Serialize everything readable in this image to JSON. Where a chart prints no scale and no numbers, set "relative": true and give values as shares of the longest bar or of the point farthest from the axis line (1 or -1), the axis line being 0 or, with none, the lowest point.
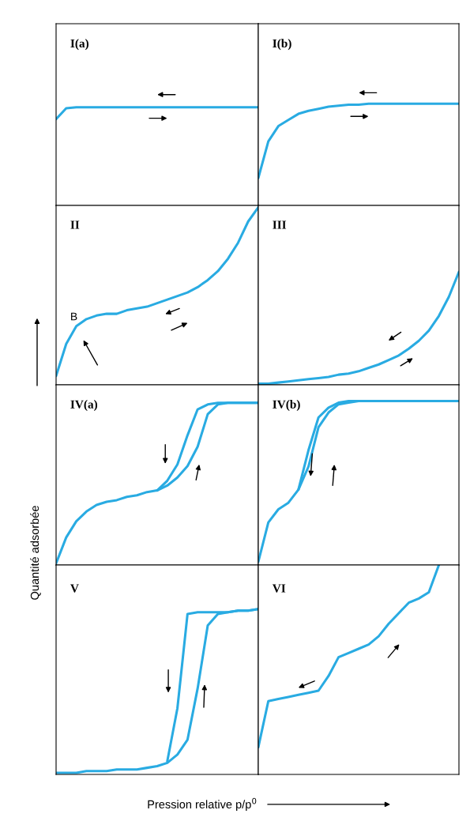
{
  "chart_data": [
    {
      "type": "line",
      "title": "I(a)",
      "relative": true,
      "categories": [
        null,
        null,
        null,
        null,
        null,
        null,
        null,
        null,
        null,
        null,
        null,
        null,
        null,
        null,
        null,
        null,
        null,
        null,
        null,
        null,
        null
      ],
      "series": [
        {
          "color": "#29abe2",
          "values": [
            0.88,
            0.99,
            1,
            1,
            1,
            1,
            1,
            1,
            1,
            1,
            1,
            1,
            1,
            1,
            1,
            1,
            1,
            1,
            1,
            1,
            1
          ]
        }
      ]
    },
    {
      "type": "line",
      "title": "I(b)",
      "relative": true,
      "categories": [
        null,
        null,
        null,
        null,
        null,
        null,
        null,
        null,
        null,
        null,
        null,
        null,
        null,
        null,
        null,
        null,
        null,
        null,
        null,
        null,
        null
      ],
      "series": [
        {
          "color": "#29abe2",
          "values": [
            0.27,
            0.63,
            0.78,
            0.84,
            0.9,
            0.93,
            0.95,
            0.97,
            0.98,
            0.99,
            0.99,
            1,
            1,
            1,
            1,
            1,
            1,
            1,
            1,
            1,
            1
          ]
        }
      ]
    },
    {
      "type": "line",
      "title": "II",
      "relative": true,
      "annotations": [
        "B"
      ],
      "categories": [
        null,
        null,
        null,
        null,
        null,
        null,
        null,
        null,
        null,
        null,
        null,
        null,
        null,
        null,
        null,
        null,
        null,
        null,
        null,
        null,
        null
      ],
      "series": [
        {
          "color": "#29abe2",
          "values": [
            0.05,
            0.23,
            0.33,
            0.37,
            0.39,
            0.4,
            0.4,
            0.42,
            0.43,
            0.44,
            0.46,
            0.48,
            0.5,
            0.52,
            0.55,
            0.59,
            0.64,
            0.71,
            0.8,
            0.92,
            1
          ]
        }
      ]
    },
    {
      "type": "line",
      "title": "III",
      "relative": true,
      "categories": [
        null,
        null,
        null,
        null,
        null,
        null,
        null,
        null,
        null,
        null,
        null,
        null,
        null,
        null,
        null,
        null,
        null,
        null,
        null,
        null,
        null
      ],
      "series": [
        {
          "color": "#29abe2",
          "values": [
            0.01,
            0.01,
            0.02,
            0.03,
            0.04,
            0.05,
            0.06,
            0.07,
            0.09,
            0.1,
            0.12,
            0.15,
            0.18,
            0.22,
            0.26,
            0.32,
            0.39,
            0.48,
            0.61,
            0.78,
            1
          ]
        }
      ]
    },
    {
      "type": "line",
      "title": "IV(a)",
      "relative": true,
      "categories": [
        null,
        null,
        null,
        null,
        null,
        null,
        null,
        null,
        null,
        null,
        null,
        null,
        null,
        null,
        null,
        null,
        null,
        null,
        null,
        null,
        null
      ],
      "series": [
        {
          "color": "#29abe2",
          "values": [
            0.01,
            0.17,
            0.27,
            0.33,
            0.37,
            0.39,
            0.4,
            0.42,
            0.43,
            0.45,
            0.46,
            0.49,
            0.54,
            0.61,
            0.73,
            0.93,
            0.99,
            1,
            1,
            1,
            1
          ]
        },
        {
          "color": "#29abe2",
          "values": [
            null,
            null,
            null,
            null,
            null,
            null,
            null,
            null,
            null,
            null,
            0.46,
            0.52,
            0.62,
            0.8,
            0.96,
            0.99,
            1,
            1,
            1,
            1,
            1
          ]
        }
      ]
    },
    {
      "type": "line",
      "title": "IV(b)",
      "relative": true,
      "categories": [
        null,
        null,
        null,
        null,
        null,
        null,
        null,
        null,
        null,
        null,
        null,
        null,
        null,
        null,
        null,
        null,
        null,
        null,
        null,
        null,
        null
      ],
      "series": [
        {
          "color": "#29abe2",
          "values": [
            0.02,
            0.26,
            0.34,
            0.38,
            0.46,
            0.6,
            0.84,
            0.93,
            0.98,
            0.99,
            1,
            1,
            1,
            1,
            1,
            1,
            1,
            1,
            1,
            1,
            1
          ]
        },
        {
          "color": "#29abe2",
          "values": [
            null,
            null,
            null,
            null,
            0.46,
            0.7,
            0.9,
            0.96,
            0.99,
            1,
            1,
            1,
            1,
            1,
            1,
            1,
            1,
            1,
            1,
            1,
            1
          ]
        }
      ]
    },
    {
      "type": "line",
      "title": "V",
      "relative": true,
      "ylabel": "Quantité adsorbée",
      "xlabel": "Pression relative p/p$^{0}$",
      "categories": [
        null,
        null,
        null,
        null,
        null,
        null,
        null,
        null,
        null,
        null,
        null,
        null,
        null,
        null,
        null,
        null,
        null,
        null,
        null,
        null,
        null
      ],
      "series": [
        {
          "color": "#29abe2",
          "values": [
            0.01,
            0.01,
            0.01,
            0.02,
            0.02,
            0.02,
            0.03,
            0.03,
            0.03,
            0.04,
            0.05,
            0.07,
            0.12,
            0.21,
            0.52,
            0.9,
            0.97,
            0.98,
            0.99,
            0.99,
            1
          ]
        },
        {
          "color": "#29abe2",
          "values": [
            null,
            null,
            null,
            null,
            null,
            null,
            null,
            null,
            null,
            null,
            null,
            0.08,
            0.4,
            0.97,
            0.98,
            0.98,
            0.98,
            0.98,
            0.99,
            0.99,
            1
          ]
        }
      ]
    },
    {
      "type": "line",
      "title": "VI",
      "relative": true,
      "categories": [
        null,
        null,
        null,
        null,
        null,
        null,
        null,
        null,
        null,
        null,
        null,
        null,
        null,
        null,
        null,
        null,
        null,
        null,
        null,
        null,
        null
      ],
      "series": [
        {
          "color": "#29abe2",
          "values": [
            0.13,
            0.35,
            0.36,
            0.37,
            0.38,
            0.39,
            0.4,
            0.47,
            0.56,
            0.58,
            0.6,
            0.62,
            0.66,
            0.72,
            0.77,
            0.82,
            0.84,
            0.87,
            1,
            null,
            null
          ]
        }
      ]
    }
  ]
}
